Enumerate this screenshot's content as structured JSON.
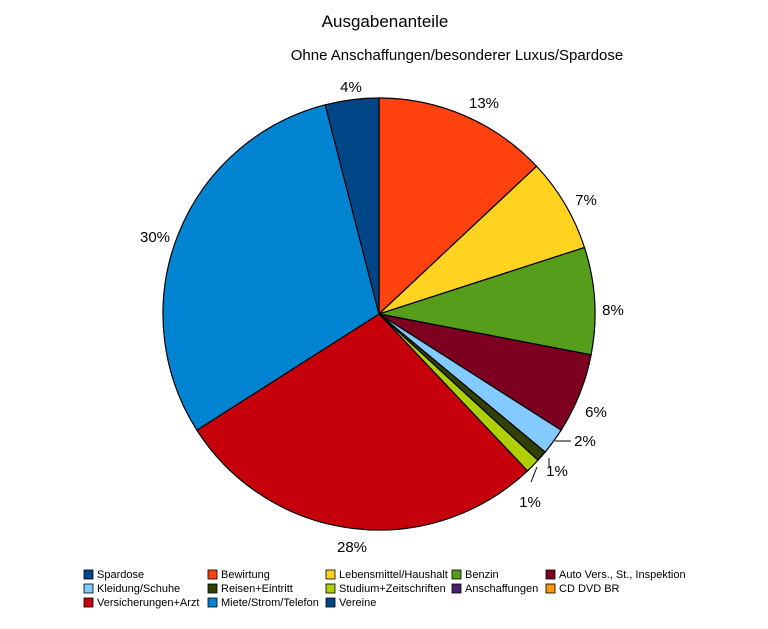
{
  "chart_data": {
    "type": "pie",
    "title": "Ausgabenanteile",
    "subtitle": "Ohne Anschaffungen/besonderer Luxus/Spardose",
    "slices": [
      {
        "label": "Bewirtung",
        "value": 13,
        "value_label": "13%",
        "color": "#ff420e"
      },
      {
        "label": "Lebensmittel/Haushalt",
        "value": 7,
        "value_label": "7%",
        "color": "#ffd320"
      },
      {
        "label": "Benzin",
        "value": 8,
        "value_label": "8%",
        "color": "#579d1c"
      },
      {
        "label": "Auto Vers., St., Inspektion",
        "value": 6,
        "value_label": "6%",
        "color": "#7e0021"
      },
      {
        "label": "Kleidung/Schuhe",
        "value": 2,
        "value_label": "2%",
        "color": "#83caff"
      },
      {
        "label": "Reisen+Eintritt",
        "value": 0.8,
        "value_label": "1%",
        "color": "#314004"
      },
      {
        "label": "Studium+Zeitschriften",
        "value": 1.1,
        "value_label": "1%",
        "color": "#aecf00"
      },
      {
        "label": "Anschaffungen",
        "value": 0,
        "value_label": "",
        "color": "#4b1f6f"
      },
      {
        "label": "CD DVD BR",
        "value": 0,
        "value_label": "",
        "color": "#ff950e"
      },
      {
        "label": "Versicherungen+Arzt",
        "value": 28,
        "value_label": "28%",
        "color": "#c5000b"
      },
      {
        "label": "Miete/Strom/Telefon",
        "value": 30,
        "value_label": "30%",
        "color": "#0084d1"
      },
      {
        "label": "Vereine",
        "value": 4,
        "value_label": "4%",
        "color": "#004586"
      }
    ],
    "legend": {
      "placement": "bottom",
      "entries": [
        {
          "label": "Spardose",
          "color": "#004586"
        },
        {
          "label": "Bewirtung",
          "color": "#ff420e"
        },
        {
          "label": "Lebensmittel/Haushalt",
          "color": "#ffd320"
        },
        {
          "label": "Benzin",
          "color": "#579d1c"
        },
        {
          "label": "Auto Vers., St., Inspektion",
          "color": "#7e0021"
        },
        {
          "label": "Kleidung/Schuhe",
          "color": "#83caff"
        },
        {
          "label": "Reisen+Eintritt",
          "color": "#314004"
        },
        {
          "label": "Studium+Zeitschriften",
          "color": "#aecf00"
        },
        {
          "label": "Anschaffungen",
          "color": "#4b1f6f"
        },
        {
          "label": "CD DVD BR",
          "color": "#ff950e"
        },
        {
          "label": "Versicherungen+Arzt",
          "color": "#c5000b"
        },
        {
          "label": "Miete/Strom/Telefon",
          "color": "#0084d1"
        },
        {
          "label": "Vereine",
          "color": "#004586"
        }
      ]
    }
  }
}
